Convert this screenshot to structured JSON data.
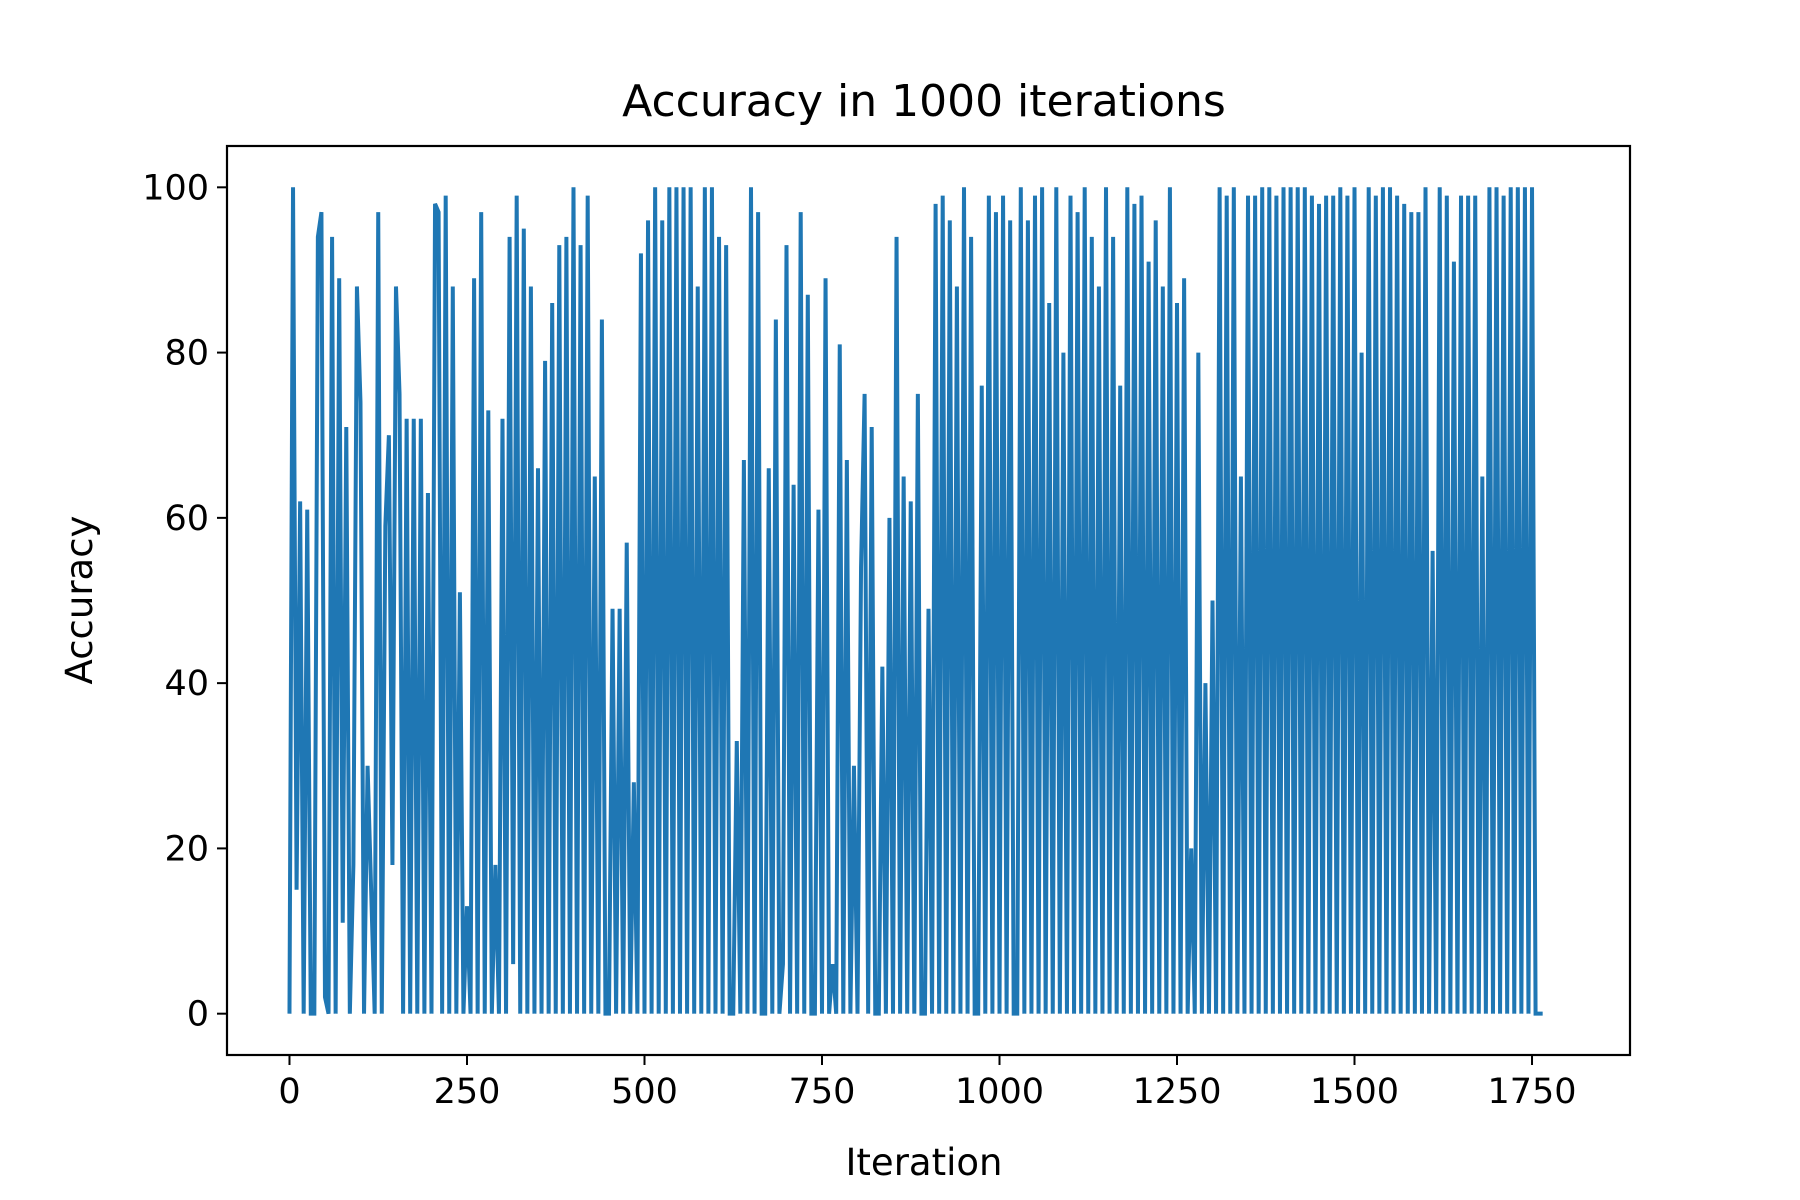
{
  "chart_data": {
    "type": "line",
    "title": "Accuracy in 1000 iterations",
    "xlabel": "Iteration",
    "ylabel": "Accuracy",
    "xlim": [
      -88,
      1888
    ],
    "ylim": [
      -5,
      105
    ],
    "xticks": [
      0,
      250,
      500,
      750,
      1000,
      1250,
      1500,
      1750
    ],
    "yticks": [
      0,
      20,
      40,
      60,
      80,
      100
    ],
    "grid": false,
    "legend": "none",
    "x_start": 0,
    "x_step": 5,
    "series": [
      {
        "color": "#1f77b4",
        "y": [
          0,
          100,
          15,
          62,
          0,
          61,
          0,
          0,
          94,
          97,
          2,
          0,
          94,
          0,
          89,
          11,
          71,
          0,
          18,
          88,
          74,
          0,
          30,
          15,
          0,
          97,
          0,
          59,
          70,
          18,
          88,
          75,
          0,
          72,
          0,
          72,
          0,
          72,
          0,
          63,
          0,
          98,
          97,
          0,
          99,
          0,
          88,
          0,
          51,
          0,
          13,
          0,
          89,
          0,
          97,
          0,
          73,
          0,
          18,
          0,
          72,
          0,
          94,
          6,
          99,
          0,
          95,
          0,
          88,
          0,
          66,
          0,
          79,
          0,
          86,
          0,
          93,
          0,
          94,
          0,
          100,
          0,
          93,
          0,
          99,
          0,
          65,
          0,
          84,
          0,
          0,
          49,
          0,
          49,
          0,
          57,
          0,
          28,
          0,
          92,
          0,
          96,
          0,
          100,
          0,
          96,
          0,
          100,
          0,
          100,
          0,
          100,
          0,
          100,
          0,
          88,
          0,
          100,
          0,
          100,
          0,
          94,
          0,
          93,
          0,
          0,
          33,
          0,
          67,
          0,
          100,
          0,
          97,
          0,
          0,
          66,
          0,
          84,
          0,
          6,
          93,
          0,
          64,
          0,
          97,
          0,
          87,
          0,
          0,
          61,
          0,
          89,
          0,
          6,
          0,
          81,
          0,
          67,
          0,
          30,
          0,
          54,
          75,
          0,
          71,
          0,
          0,
          42,
          0,
          60,
          0,
          94,
          0,
          65,
          0,
          62,
          0,
          75,
          0,
          0,
          49,
          0,
          98,
          0,
          99,
          0,
          96,
          0,
          88,
          0,
          100,
          0,
          94,
          0,
          0,
          76,
          0,
          99,
          0,
          97,
          0,
          99,
          0,
          96,
          0,
          0,
          100,
          0,
          96,
          0,
          99,
          0,
          100,
          0,
          86,
          0,
          100,
          0,
          80,
          0,
          99,
          0,
          97,
          0,
          100,
          0,
          94,
          0,
          88,
          0,
          100,
          0,
          94,
          0,
          76,
          0,
          100,
          0,
          98,
          0,
          99,
          0,
          91,
          0,
          96,
          0,
          88,
          0,
          100,
          0,
          86,
          0,
          89,
          0,
          20,
          0,
          80,
          0,
          40,
          0,
          50,
          0,
          100,
          0,
          99,
          0,
          100,
          0,
          65,
          0,
          99,
          0,
          99,
          0,
          100,
          0,
          100,
          0,
          99,
          0,
          100,
          0,
          100,
          0,
          100,
          0,
          100,
          0,
          99,
          0,
          98,
          0,
          99,
          0,
          99,
          0,
          100,
          0,
          99,
          0,
          100,
          0,
          80,
          0,
          100,
          0,
          99,
          0,
          100,
          0,
          100,
          0,
          99,
          0,
          98,
          0,
          97,
          0,
          97,
          0,
          100,
          0,
          56,
          0,
          100,
          0,
          99,
          0,
          91,
          0,
          99,
          0,
          99,
          0,
          99,
          0,
          65,
          0,
          100,
          0,
          100,
          0,
          99,
          0,
          100,
          0,
          100,
          0,
          100,
          0,
          100,
          0,
          0,
          0
        ]
      }
    ]
  }
}
